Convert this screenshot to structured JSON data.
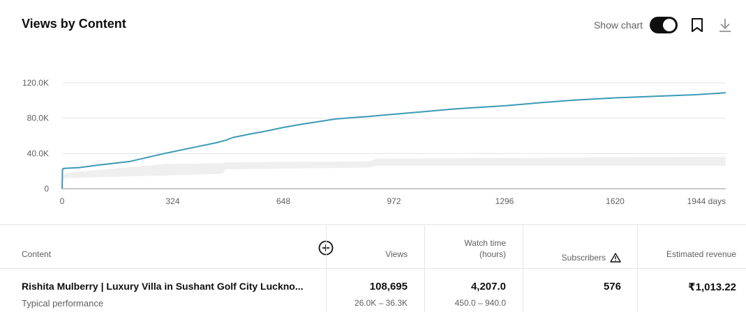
{
  "header": {
    "title": "Views by Content",
    "show_chart_label": "Show chart",
    "show_chart_on": true
  },
  "icons": {
    "bookmark": "bookmark-icon",
    "download": "download-icon",
    "add_column": "add-circle-icon",
    "warning": "warning-icon"
  },
  "colors": {
    "series_line": "#3a9ab5",
    "typical_band": "#efefef",
    "toggle_on": "#0f0f0f"
  },
  "chart_data": {
    "type": "line",
    "x_unit": "days",
    "xlim": [
      0,
      1944
    ],
    "ylim": [
      0,
      120000
    ],
    "x_ticks": [
      "0",
      "324",
      "648",
      "972",
      "1296",
      "1620",
      "1944 days"
    ],
    "x_tick_values": [
      0,
      324,
      648,
      972,
      1296,
      1620,
      1944
    ],
    "y_ticks": [
      "0",
      "40.0K",
      "80.0K",
      "120.0K"
    ],
    "y_tick_values": [
      0,
      40000,
      80000,
      120000
    ],
    "grid": true,
    "series": [
      {
        "x": [
          0,
          1,
          3,
          50,
          100,
          200,
          300,
          400,
          450,
          480,
          500,
          550,
          600,
          648,
          700,
          750,
          800,
          900,
          972,
          1050,
          1150,
          1296,
          1400,
          1500,
          1620,
          1750,
          1850,
          1944
        ],
        "y": [
          0,
          21000,
          23000,
          24000,
          26500,
          31000,
          40000,
          48000,
          52000,
          55000,
          58000,
          62000,
          65500,
          69500,
          73000,
          76000,
          79000,
          82000,
          84500,
          87000,
          90500,
          94000,
          97500,
          100500,
          103000,
          105000,
          106500,
          108695
        ]
      },
      {
        "x": [
          0,
          10,
          300,
          470,
          480,
          900,
          920,
          1944
        ],
        "low": [
          8000,
          12000,
          15000,
          17000,
          22000,
          24000,
          26000,
          26000
        ],
        "high": [
          14000,
          18000,
          28000,
          29000,
          30000,
          31000,
          34000,
          36300
        ]
      }
    ]
  },
  "table": {
    "headers": {
      "content": "Content",
      "views": "Views",
      "watch_time_line1": "Watch time",
      "watch_time_line2": "(hours)",
      "subscribers": "Subscribers",
      "revenue": "Estimated revenue"
    },
    "row": {
      "title": "Rishita Mulberry | Luxury Villa in Sushant Golf City Luckno...",
      "subtitle": "Typical performance",
      "views": "108,695",
      "views_range": "26.0K – 36.3K",
      "watch_time": "4,207.0",
      "watch_time_range": "450.0 – 940.0",
      "subscribers": "576",
      "revenue": "₹1,013.22"
    }
  }
}
